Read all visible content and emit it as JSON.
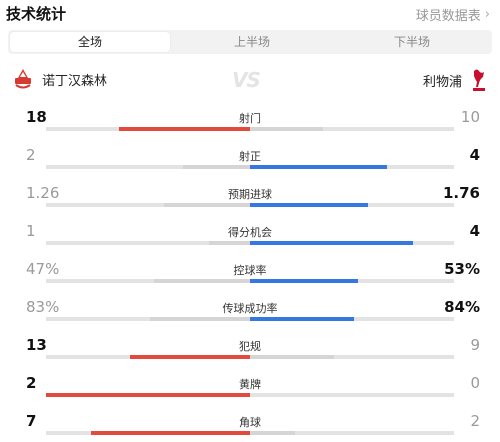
{
  "header": {
    "title": "技术统计",
    "more_label": "球员数据表",
    "more_chevron": "›"
  },
  "tabs": [
    {
      "label": "全场",
      "active": true
    },
    {
      "label": "上半场",
      "active": false
    },
    {
      "label": "下半场",
      "active": false
    }
  ],
  "teams": {
    "home": {
      "name": "诺丁汉森林",
      "icon": "nottingham-forest-logo"
    },
    "away": {
      "name": "利物浦",
      "icon": "liverpool-logo"
    },
    "vs_label": "VS"
  },
  "colors": {
    "home_accent": "#e34a3e",
    "away_accent": "#3478e0",
    "muted_bar": "#d5d5d5",
    "track": "#e3e3e3"
  },
  "stats": [
    {
      "label": "射门",
      "home": "18",
      "away": "10",
      "home_share": 0.64,
      "away_share": 0.36,
      "leader": "home"
    },
    {
      "label": "射正",
      "home": "2",
      "away": "4",
      "home_share": 0.33,
      "away_share": 0.67,
      "leader": "away"
    },
    {
      "label": "预期进球",
      "home": "1.26",
      "away": "1.76",
      "home_share": 0.42,
      "away_share": 0.58,
      "leader": "away"
    },
    {
      "label": "得分机会",
      "home": "1",
      "away": "4",
      "home_share": 0.2,
      "away_share": 0.8,
      "leader": "away"
    },
    {
      "label": "控球率",
      "home": "47%",
      "away": "53%",
      "home_share": 0.47,
      "away_share": 0.53,
      "leader": "away"
    },
    {
      "label": "传球成功率",
      "home": "83%",
      "away": "84%",
      "home_share": 0.49,
      "away_share": 0.51,
      "leader": "away"
    },
    {
      "label": "犯规",
      "home": "13",
      "away": "9",
      "home_share": 0.59,
      "away_share": 0.41,
      "leader": "home"
    },
    {
      "label": "黄牌",
      "home": "2",
      "away": "0",
      "home_share": 1.0,
      "away_share": 0.0,
      "leader": "home"
    },
    {
      "label": "角球",
      "home": "7",
      "away": "2",
      "home_share": 0.78,
      "away_share": 0.22,
      "leader": "home"
    }
  ]
}
